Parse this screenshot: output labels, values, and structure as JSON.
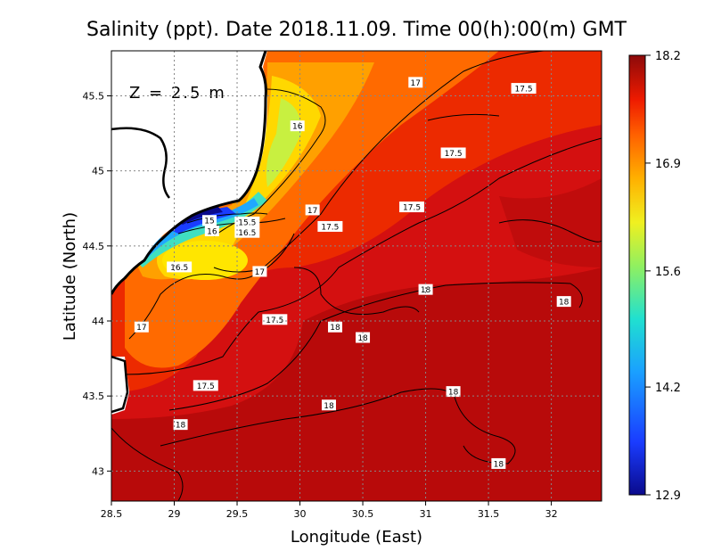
{
  "title": "Salinity (ppt). Date 2018.11.09. Time 00(h):00(m) GMT",
  "depth_label": "Z = 2.5 m",
  "axes": {
    "xlabel": "Longitude (East)",
    "ylabel": "Latitude (North)",
    "x_ticks": [
      "28.5",
      "29",
      "29.5",
      "30",
      "30.5",
      "31",
      "31.5",
      "32"
    ],
    "y_ticks": [
      "43",
      "43.5",
      "44",
      "44.5",
      "45",
      "45.5"
    ],
    "xlim": [
      28.5,
      32.4
    ],
    "ylim": [
      42.8,
      45.8
    ]
  },
  "colorbar": {
    "ticks": [
      "18.2",
      "16.9",
      "15.6",
      "14.2",
      "12.9"
    ],
    "min": 12.9,
    "max": 18.2
  },
  "contour_labels": [
    {
      "text": "17",
      "lon": 30.92,
      "lat": 45.59
    },
    {
      "text": "17.5",
      "lon": 31.78,
      "lat": 45.55
    },
    {
      "text": "16",
      "lon": 29.98,
      "lat": 45.3
    },
    {
      "text": "17.5",
      "lon": 31.22,
      "lat": 45.12
    },
    {
      "text": "17.5",
      "lon": 30.89,
      "lat": 44.76
    },
    {
      "text": "17",
      "lon": 30.1,
      "lat": 44.74
    },
    {
      "text": "15",
      "lon": 29.28,
      "lat": 44.67
    },
    {
      "text": "15.5",
      "lon": 29.58,
      "lat": 44.66
    },
    {
      "text": "16",
      "lon": 29.3,
      "lat": 44.6
    },
    {
      "text": "16.5",
      "lon": 29.58,
      "lat": 44.59
    },
    {
      "text": "17.5",
      "lon": 30.24,
      "lat": 44.63
    },
    {
      "text": "16.5",
      "lon": 29.04,
      "lat": 44.36
    },
    {
      "text": "17",
      "lon": 29.68,
      "lat": 44.33
    },
    {
      "text": "18",
      "lon": 31.0,
      "lat": 44.21
    },
    {
      "text": "18",
      "lon": 32.1,
      "lat": 44.13
    },
    {
      "text": "17.5",
      "lon": 29.8,
      "lat": 44.01
    },
    {
      "text": "18",
      "lon": 30.28,
      "lat": 43.96
    },
    {
      "text": "17",
      "lon": 28.74,
      "lat": 43.96
    },
    {
      "text": "18",
      "lon": 30.5,
      "lat": 43.89
    },
    {
      "text": "17.5",
      "lon": 29.25,
      "lat": 43.57
    },
    {
      "text": "18",
      "lon": 31.22,
      "lat": 43.53
    },
    {
      "text": "18",
      "lon": 30.23,
      "lat": 43.44
    },
    {
      "text": "18",
      "lon": 29.05,
      "lat": 43.31
    },
    {
      "text": "18",
      "lon": 31.58,
      "lat": 43.05
    }
  ]
}
